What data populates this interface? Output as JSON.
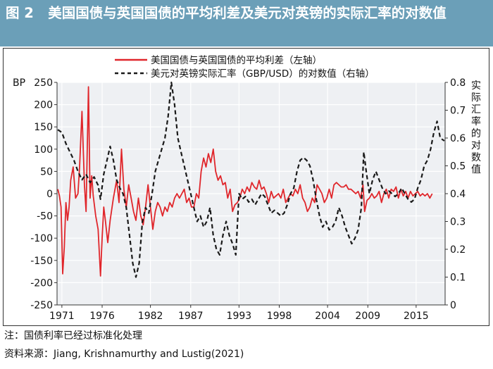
{
  "header": {
    "figure_label": "图 2",
    "title": "美国国债与英国国债的平均利差及美元对英镑的实际汇率的对数值"
  },
  "footer": {
    "note": "注：国债利率已经过标准化处理",
    "source": "资料来源：Jiang, Krishnamurthy and Lustig(2021)"
  },
  "chart_data": {
    "type": "line",
    "legend_position": "top-center",
    "grid": true,
    "x_tick_labels": [
      "1971",
      "1976",
      "1982",
      "1987",
      "1993",
      "1998",
      "2004",
      "2009",
      "2015"
    ],
    "xlim": [
      1970.4,
      2018.6
    ],
    "left_axis": {
      "unit_label": "BP",
      "ylim": [
        -250,
        250
      ],
      "ticks": [
        250,
        200,
        150,
        100,
        50,
        0,
        -50,
        -100,
        -150,
        -200,
        -250
      ]
    },
    "right_axis": {
      "label": "实际汇率的对数值",
      "ylim": [
        0,
        0.8
      ],
      "ticks": [
        "0.8",
        "0.7",
        "0.6",
        "0.5",
        "0.4",
        "0.3",
        "0.2",
        "0.1",
        "0"
      ]
    },
    "series": [
      {
        "name": "美国国债与英国国债的平均利差（左轴）",
        "axis": "left",
        "color": "#e0262b",
        "style": "solid",
        "points": [
          [
            1970.5,
            10
          ],
          [
            1970.7,
            -5
          ],
          [
            1970.9,
            -30
          ],
          [
            1971.1,
            -180
          ],
          [
            1971.3,
            -120
          ],
          [
            1971.5,
            -20
          ],
          [
            1971.7,
            -60
          ],
          [
            1971.9,
            -30
          ],
          [
            1972.1,
            30
          ],
          [
            1972.4,
            60
          ],
          [
            1972.7,
            -10
          ],
          [
            1973.0,
            0
          ],
          [
            1973.2,
            60
          ],
          [
            1973.5,
            185
          ],
          [
            1973.8,
            20
          ],
          [
            1974.0,
            -40
          ],
          [
            1974.3,
            240
          ],
          [
            1974.5,
            -10
          ],
          [
            1974.7,
            40
          ],
          [
            1974.9,
            -5
          ],
          [
            1975.2,
            -50
          ],
          [
            1975.5,
            -80
          ],
          [
            1975.8,
            -185
          ],
          [
            1976.0,
            -100
          ],
          [
            1976.2,
            -30
          ],
          [
            1976.4,
            -60
          ],
          [
            1976.7,
            -110
          ],
          [
            1977.0,
            -60
          ],
          [
            1977.4,
            -10
          ],
          [
            1977.8,
            30
          ],
          [
            1978.1,
            -20
          ],
          [
            1978.4,
            100
          ],
          [
            1978.7,
            10
          ],
          [
            1979.0,
            -30
          ],
          [
            1979.3,
            20
          ],
          [
            1979.6,
            -10
          ],
          [
            1979.9,
            -40
          ],
          [
            1980.2,
            -60
          ],
          [
            1980.5,
            -10
          ],
          [
            1980.8,
            -50
          ],
          [
            1981.1,
            -70
          ],
          [
            1981.4,
            -30
          ],
          [
            1981.7,
            20
          ],
          [
            1982.0,
            -30
          ],
          [
            1982.3,
            -80
          ],
          [
            1982.6,
            -40
          ],
          [
            1982.9,
            -20
          ],
          [
            1983.2,
            -30
          ],
          [
            1983.5,
            -50
          ],
          [
            1983.8,
            -30
          ],
          [
            1984.1,
            -40
          ],
          [
            1984.4,
            -20
          ],
          [
            1984.7,
            -30
          ],
          [
            1985.0,
            -10
          ],
          [
            1985.3,
            0
          ],
          [
            1985.6,
            -10
          ],
          [
            1985.9,
            0
          ],
          [
            1986.2,
            10
          ],
          [
            1986.5,
            -20
          ],
          [
            1986.8,
            -10
          ],
          [
            1987.1,
            -30
          ],
          [
            1987.4,
            -30
          ],
          [
            1987.7,
            0
          ],
          [
            1988.0,
            -10
          ],
          [
            1988.3,
            50
          ],
          [
            1988.6,
            80
          ],
          [
            1988.9,
            60
          ],
          [
            1989.2,
            90
          ],
          [
            1989.5,
            70
          ],
          [
            1989.8,
            100
          ],
          [
            1990.1,
            50
          ],
          [
            1990.4,
            30
          ],
          [
            1990.7,
            40
          ],
          [
            1991.0,
            20
          ],
          [
            1991.3,
            25
          ],
          [
            1991.6,
            -10
          ],
          [
            1991.9,
            10
          ],
          [
            1992.2,
            -40
          ],
          [
            1992.5,
            -25
          ],
          [
            1992.8,
            -20
          ],
          [
            1993.1,
            -10
          ],
          [
            1993.4,
            10
          ],
          [
            1993.7,
            0
          ],
          [
            1994.0,
            15
          ],
          [
            1994.3,
            5
          ],
          [
            1994.6,
            25
          ],
          [
            1994.9,
            15
          ],
          [
            1995.2,
            10
          ],
          [
            1995.5,
            30
          ],
          [
            1995.8,
            10
          ],
          [
            1996.1,
            15
          ],
          [
            1996.4,
            0
          ],
          [
            1996.7,
            -20
          ],
          [
            1997.0,
            5
          ],
          [
            1997.3,
            -10
          ],
          [
            1997.6,
            -5
          ],
          [
            1997.9,
            0
          ],
          [
            1998.2,
            -10
          ],
          [
            1998.5,
            10
          ],
          [
            1998.8,
            -20
          ],
          [
            1999.1,
            -10
          ],
          [
            1999.4,
            0
          ],
          [
            1999.7,
            -5
          ],
          [
            2000.0,
            10
          ],
          [
            2000.3,
            0
          ],
          [
            2000.6,
            20
          ],
          [
            2000.9,
            -10
          ],
          [
            2001.2,
            -20
          ],
          [
            2001.5,
            -40
          ],
          [
            2001.8,
            -30
          ],
          [
            2002.1,
            -10
          ],
          [
            2002.4,
            -20
          ],
          [
            2002.7,
            20
          ],
          [
            2003.0,
            10
          ],
          [
            2003.3,
            0
          ],
          [
            2003.6,
            -20
          ],
          [
            2003.9,
            -10
          ],
          [
            2004.2,
            10
          ],
          [
            2004.5,
            -10
          ],
          [
            2004.8,
            20
          ],
          [
            2005.1,
            25
          ],
          [
            2005.4,
            20
          ],
          [
            2005.7,
            15
          ],
          [
            2006.0,
            15
          ],
          [
            2006.3,
            20
          ],
          [
            2006.6,
            10
          ],
          [
            2006.9,
            10
          ],
          [
            2007.2,
            5
          ],
          [
            2007.5,
            0
          ],
          [
            2007.8,
            5
          ],
          [
            2008.1,
            -10
          ],
          [
            2008.4,
            20
          ],
          [
            2008.6,
            -40
          ],
          [
            2008.9,
            -15
          ],
          [
            2009.2,
            -10
          ],
          [
            2009.5,
            0
          ],
          [
            2009.8,
            -10
          ],
          [
            2010.1,
            -5
          ],
          [
            2010.4,
            5
          ],
          [
            2010.7,
            -20
          ],
          [
            2011.0,
            0
          ],
          [
            2011.3,
            10
          ],
          [
            2011.6,
            -10
          ],
          [
            2011.9,
            10
          ],
          [
            2012.2,
            5
          ],
          [
            2012.5,
            15
          ],
          [
            2012.8,
            -10
          ],
          [
            2013.1,
            10
          ],
          [
            2013.4,
            -5
          ],
          [
            2013.7,
            5
          ],
          [
            2014.0,
            -10
          ],
          [
            2014.3,
            5
          ],
          [
            2014.6,
            -5
          ],
          [
            2014.9,
            0
          ],
          [
            2015.2,
            5
          ],
          [
            2015.5,
            -5
          ],
          [
            2015.8,
            0
          ],
          [
            2016.1,
            -5
          ],
          [
            2016.4,
            0
          ],
          [
            2016.7,
            -10
          ],
          [
            2017.0,
            0
          ]
        ]
      },
      {
        "name": "美元对英镑实际汇率（GBP/USD）的对数值（右轴）",
        "axis": "right",
        "color": "#1a1a1a",
        "style": "dashed",
        "points": [
          [
            1970.5,
            0.63
          ],
          [
            1971.0,
            0.62
          ],
          [
            1971.5,
            0.58
          ],
          [
            1972.0,
            0.55
          ],
          [
            1972.5,
            0.52
          ],
          [
            1973.0,
            0.48
          ],
          [
            1973.5,
            0.45
          ],
          [
            1974.0,
            0.47
          ],
          [
            1974.5,
            0.44
          ],
          [
            1975.0,
            0.46
          ],
          [
            1975.5,
            0.43
          ],
          [
            1975.8,
            0.38
          ],
          [
            1976.2,
            0.47
          ],
          [
            1976.6,
            0.52
          ],
          [
            1977.0,
            0.57
          ],
          [
            1977.4,
            0.52
          ],
          [
            1977.8,
            0.45
          ],
          [
            1978.2,
            0.42
          ],
          [
            1978.6,
            0.4
          ],
          [
            1979.0,
            0.35
          ],
          [
            1979.4,
            0.25
          ],
          [
            1979.8,
            0.15
          ],
          [
            1980.2,
            0.1
          ],
          [
            1980.6,
            0.15
          ],
          [
            1981.0,
            0.3
          ],
          [
            1981.4,
            0.35
          ],
          [
            1981.8,
            0.33
          ],
          [
            1982.2,
            0.4
          ],
          [
            1982.6,
            0.48
          ],
          [
            1983.0,
            0.52
          ],
          [
            1983.4,
            0.56
          ],
          [
            1983.8,
            0.6
          ],
          [
            1984.2,
            0.68
          ],
          [
            1984.6,
            0.8
          ],
          [
            1985.0,
            0.72
          ],
          [
            1985.4,
            0.6
          ],
          [
            1985.8,
            0.55
          ],
          [
            1986.2,
            0.5
          ],
          [
            1986.6,
            0.45
          ],
          [
            1987.0,
            0.4
          ],
          [
            1987.4,
            0.35
          ],
          [
            1987.8,
            0.3
          ],
          [
            1988.2,
            0.32
          ],
          [
            1988.6,
            0.28
          ],
          [
            1989.0,
            0.3
          ],
          [
            1989.4,
            0.35
          ],
          [
            1989.8,
            0.25
          ],
          [
            1990.2,
            0.2
          ],
          [
            1990.6,
            0.18
          ],
          [
            1991.0,
            0.25
          ],
          [
            1991.4,
            0.3
          ],
          [
            1991.8,
            0.25
          ],
          [
            1992.2,
            0.22
          ],
          [
            1992.6,
            0.18
          ],
          [
            1993.0,
            0.4
          ],
          [
            1993.4,
            0.38
          ],
          [
            1993.8,
            0.39
          ],
          [
            1994.2,
            0.37
          ],
          [
            1994.6,
            0.38
          ],
          [
            1995.0,
            0.36
          ],
          [
            1995.4,
            0.38
          ],
          [
            1995.8,
            0.4
          ],
          [
            1996.2,
            0.39
          ],
          [
            1996.6,
            0.36
          ],
          [
            1997.0,
            0.33
          ],
          [
            1997.4,
            0.34
          ],
          [
            1997.8,
            0.33
          ],
          [
            1998.2,
            0.32
          ],
          [
            1998.6,
            0.33
          ],
          [
            1999.0,
            0.36
          ],
          [
            1999.4,
            0.4
          ],
          [
            1999.8,
            0.42
          ],
          [
            2000.2,
            0.48
          ],
          [
            2000.6,
            0.52
          ],
          [
            2001.0,
            0.53
          ],
          [
            2001.4,
            0.52
          ],
          [
            2001.8,
            0.5
          ],
          [
            2002.2,
            0.45
          ],
          [
            2002.6,
            0.38
          ],
          [
            2003.0,
            0.32
          ],
          [
            2003.4,
            0.28
          ],
          [
            2003.8,
            0.3
          ],
          [
            2004.2,
            0.27
          ],
          [
            2004.6,
            0.28
          ],
          [
            2005.0,
            0.3
          ],
          [
            2005.4,
            0.35
          ],
          [
            2005.8,
            0.32
          ],
          [
            2006.2,
            0.28
          ],
          [
            2006.6,
            0.25
          ],
          [
            2007.0,
            0.22
          ],
          [
            2007.4,
            0.24
          ],
          [
            2007.8,
            0.27
          ],
          [
            2008.2,
            0.35
          ],
          [
            2008.5,
            0.55
          ],
          [
            2008.8,
            0.48
          ],
          [
            2009.2,
            0.4
          ],
          [
            2009.6,
            0.45
          ],
          [
            2010.0,
            0.48
          ],
          [
            2010.4,
            0.45
          ],
          [
            2010.8,
            0.42
          ],
          [
            2011.2,
            0.4
          ],
          [
            2011.6,
            0.41
          ],
          [
            2012.0,
            0.4
          ],
          [
            2012.4,
            0.39
          ],
          [
            2012.8,
            0.4
          ],
          [
            2013.2,
            0.42
          ],
          [
            2013.6,
            0.4
          ],
          [
            2014.0,
            0.38
          ],
          [
            2014.4,
            0.37
          ],
          [
            2014.8,
            0.38
          ],
          [
            2015.2,
            0.42
          ],
          [
            2015.6,
            0.45
          ],
          [
            2016.0,
            0.5
          ],
          [
            2016.4,
            0.52
          ],
          [
            2016.8,
            0.56
          ],
          [
            2017.2,
            0.62
          ],
          [
            2017.6,
            0.66
          ],
          [
            2018.0,
            0.6
          ],
          [
            2018.5,
            0.59
          ]
        ]
      }
    ]
  }
}
